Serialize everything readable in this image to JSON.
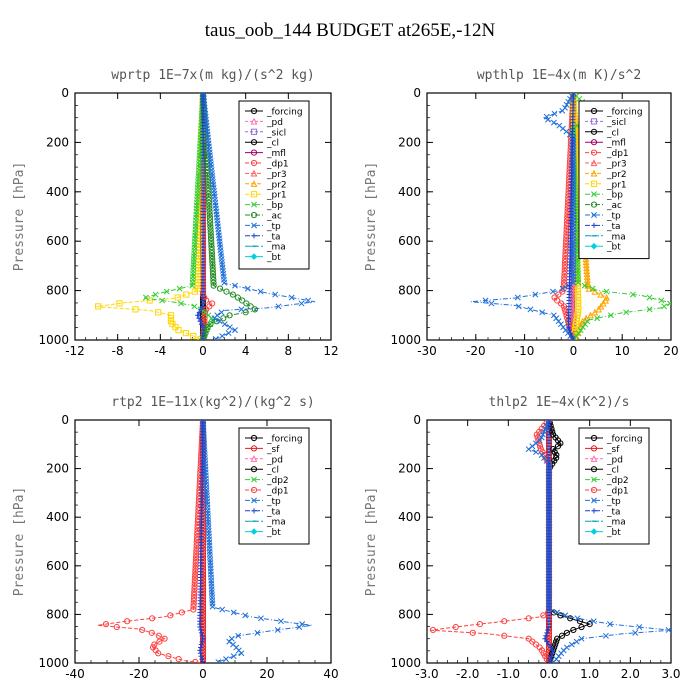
{
  "figure": {
    "title": "taus_oob_144  BUDGET at265E,-12N"
  },
  "colors": {
    "_forcing": "#000000",
    "_sf": "#e41a1c",
    "_pd": "#ff69b4",
    "_sicl": "#9370db",
    "_cl": "#000000",
    "_mfl": "#a0006a",
    "_dp1": "#ff4040",
    "_pr3": "#ff6060",
    "_pr2": "#ffa500",
    "_pr1": "#ffd700",
    "_bp": "#32cd32",
    "_ac": "#228b22",
    "_tp": "#1e6fd9",
    "_ta": "#1e3fc9",
    "_ma": "#00a0c0",
    "_bt": "#00d0e0",
    "_dp2": "#33cc33"
  },
  "chart_data": [
    {
      "type": "line",
      "title": "wprtp  1E−7x(m kg)/(s^2 kg)",
      "ylabel": "Pressure [hPa]",
      "xlabel": "",
      "xlim": [
        -12,
        12
      ],
      "ylim": [
        1000,
        0
      ],
      "xticks": [
        "-12",
        "-8",
        "-4",
        "0",
        "4",
        "8",
        "12"
      ],
      "yticks": [
        "0",
        "200",
        "400",
        "600",
        "800",
        "1000"
      ],
      "legend": [
        "_forcing",
        "_pd",
        "_sicl",
        "_cl",
        "_mfl",
        "_dp1",
        "_pr3",
        "_pr2",
        "_pr1",
        "_bp",
        "_ac",
        "_tp",
        "_ta",
        "_ma",
        "_bt"
      ],
      "legend_position": "top-right",
      "series": [
        {
          "name": "_forcing",
          "x": [
            0,
            0,
            0,
            0,
            0,
            0,
            0,
            0,
            0,
            0
          ],
          "y": [
            0,
            100,
            200,
            300,
            400,
            500,
            600,
            700,
            800,
            1000
          ]
        },
        {
          "name": "_dp1",
          "x": [
            0,
            0,
            0,
            0.3,
            0.9,
            0.7,
            0.2,
            0
          ],
          "y": [
            0,
            780,
            820,
            840,
            850,
            860,
            880,
            1000
          ]
        },
        {
          "name": "_pr1",
          "x": [
            0,
            -0.5,
            -2.5,
            -7.5,
            -10,
            -5,
            -3,
            -3,
            -2.3,
            0
          ],
          "y": [
            0,
            800,
            830,
            850,
            865,
            880,
            900,
            930,
            960,
            1000
          ]
        },
        {
          "name": "_bp",
          "x": [
            0,
            -1,
            -4,
            -5.5,
            -3,
            -1,
            0,
            1,
            0.2,
            0
          ],
          "y": [
            0,
            780,
            810,
            830,
            845,
            860,
            880,
            920,
            960,
            1000
          ]
        },
        {
          "name": "_ac",
          "x": [
            0,
            1,
            3,
            5,
            2.5,
            0.5,
            0
          ],
          "y": [
            0,
            780,
            820,
            880,
            900,
            940,
            1000
          ]
        },
        {
          "name": "_tp",
          "x": [
            0,
            2,
            6,
            10.5,
            6,
            2,
            1,
            3,
            1
          ],
          "y": [
            0,
            770,
            810,
            845,
            870,
            880,
            910,
            960,
            1000
          ]
        },
        {
          "name": "_ta",
          "x": [
            0,
            0,
            -0.5,
            0,
            0
          ],
          "y": [
            0,
            860,
            900,
            950,
            1000
          ]
        }
      ]
    },
    {
      "type": "line",
      "title": "wpthlp  1E−4x(m K)/s^2",
      "ylabel": "Pressure [hPa]",
      "xlabel": "",
      "xlim": [
        -30,
        20
      ],
      "ylim": [
        1000,
        0
      ],
      "xticks": [
        "-30",
        "-20",
        "-10",
        "0",
        "10",
        "20"
      ],
      "yticks": [
        "0",
        "200",
        "400",
        "600",
        "800",
        "1000"
      ],
      "legend": [
        "_forcing",
        "_sicl",
        "_cl",
        "_mfl",
        "_dp1",
        "_pr3",
        "_pr2",
        "_pr1",
        "_bp",
        "_ac",
        "_tp",
        "_ta",
        "_ma",
        "_bt"
      ],
      "legend_position": "top-right",
      "series": [
        {
          "name": "_forcing",
          "x": [
            0,
            0,
            0,
            0,
            0,
            0,
            0,
            0,
            0,
            0
          ],
          "y": [
            0,
            100,
            200,
            300,
            400,
            500,
            600,
            700,
            800,
            1000
          ]
        },
        {
          "name": "_pd",
          "x": [
            0,
            0,
            0,
            0
          ],
          "y": [
            0,
            400,
            800,
            1000
          ]
        },
        {
          "name": "_dp1",
          "x": [
            0,
            -2,
            -4,
            -2,
            0
          ],
          "y": [
            0,
            800,
            830,
            860,
            1000
          ]
        },
        {
          "name": "_pr2",
          "x": [
            0,
            3,
            7,
            5,
            2,
            0
          ],
          "y": [
            0,
            790,
            830,
            880,
            920,
            1000
          ]
        },
        {
          "name": "_pr1",
          "x": [
            0,
            1,
            0
          ],
          "y": [
            0,
            880,
            1000
          ]
        },
        {
          "name": "_bp",
          "x": [
            0,
            3,
            6,
            3,
            0,
            0,
            1,
            5,
            14,
            20,
            18,
            10,
            3,
            0
          ],
          "y": [
            0,
            60,
            90,
            110,
            140,
            200,
            770,
            800,
            820,
            850,
            870,
            890,
            920,
            1000
          ]
        },
        {
          "name": "_tp",
          "x": [
            0,
            -2,
            -6,
            -3,
            0,
            0,
            -3,
            -12,
            -21,
            -12,
            -4,
            0
          ],
          "y": [
            0,
            70,
            100,
            130,
            180,
            770,
            800,
            830,
            845,
            860,
            900,
            1000
          ]
        },
        {
          "name": "_ta",
          "x": [
            0,
            -1,
            0
          ],
          "y": [
            0,
            950,
            1000
          ]
        }
      ]
    },
    {
      "type": "line",
      "title": "rtp2  1E−11x(kg^2)/(kg^2 s)",
      "ylabel": "Pressure [hPa]",
      "xlabel": "",
      "xlim": [
        -40,
        40
      ],
      "ylim": [
        1000,
        0
      ],
      "xticks": [
        "-40",
        "-20",
        "0",
        "20",
        "40"
      ],
      "yticks": [
        "0",
        "200",
        "400",
        "600",
        "800",
        "1000"
      ],
      "legend": [
        "_forcing",
        "_sf",
        "_pd",
        "_cl",
        "_dp2",
        "_dp1",
        "_tp",
        "_ta",
        "_ma",
        "_bt"
      ],
      "legend_position": "top-right",
      "series": [
        {
          "name": "_sf",
          "x": [
            0,
            0,
            0,
            0,
            0,
            0,
            0,
            0,
            0,
            0
          ],
          "y": [
            0,
            100,
            200,
            300,
            400,
            500,
            600,
            700,
            800,
            1000
          ]
        },
        {
          "name": "_dp1",
          "x": [
            0,
            -3,
            -12,
            -25,
            -33,
            -20,
            -15,
            -12,
            -16,
            -14,
            -6,
            0
          ],
          "y": [
            0,
            780,
            810,
            830,
            845,
            860,
            880,
            900,
            930,
            960,
            990,
            1000
          ]
        },
        {
          "name": "_tp",
          "x": [
            0,
            3,
            15,
            28,
            34,
            20,
            10,
            8,
            10,
            12,
            6,
            4
          ],
          "y": [
            0,
            770,
            810,
            835,
            845,
            870,
            890,
            910,
            930,
            960,
            990,
            1000
          ]
        },
        {
          "name": "_ta",
          "x": [
            0,
            -1,
            0,
            -1,
            0
          ],
          "y": [
            0,
            850,
            900,
            950,
            1000
          ]
        }
      ]
    },
    {
      "type": "line",
      "title": "thlp2  1E−4x(K^2)/s",
      "ylabel": "Pressure [hPa]",
      "xlabel": "",
      "xlim": [
        -3,
        3
      ],
      "ylim": [
        1000,
        0
      ],
      "xticks": [
        "-3.0",
        "-2.0",
        "-1.0",
        "0.0",
        "1.0",
        "2.0",
        "3.0"
      ],
      "yticks": [
        "0",
        "200",
        "400",
        "600",
        "800",
        "1000"
      ],
      "legend": [
        "_forcing",
        "_sf",
        "_pd",
        "_cl",
        "_dp2",
        "_dp1",
        "_tp",
        "_ta",
        "_ma",
        "_bt"
      ],
      "legend_position": "top-right",
      "series": [
        {
          "name": "_sf",
          "x": [
            0,
            0,
            0,
            0,
            0,
            0,
            0,
            0,
            0,
            0
          ],
          "y": [
            0,
            100,
            200,
            300,
            400,
            500,
            600,
            700,
            800,
            1000
          ]
        },
        {
          "name": "_cl",
          "x": [
            0,
            0.1,
            0.3,
            0.1,
            0.2,
            0,
            0,
            0.2,
            0.6,
            1.0,
            0.5,
            0.2,
            0
          ],
          "y": [
            0,
            60,
            100,
            120,
            150,
            200,
            780,
            800,
            820,
            840,
            870,
            900,
            1000
          ]
        },
        {
          "name": "_dp1",
          "x": [
            0,
            -0.3,
            -0.2,
            0,
            0,
            -0.2,
            -1.2,
            -2.2,
            -2.9,
            -1.5,
            -0.5,
            -0.2,
            0
          ],
          "y": [
            0,
            60,
            120,
            180,
            790,
            810,
            830,
            850,
            865,
            880,
            900,
            940,
            1000
          ]
        },
        {
          "name": "_tp",
          "x": [
            0,
            -0.2,
            -0.5,
            -0.2,
            0,
            0,
            0.5,
            1.5,
            3.0,
            1.8,
            0.8,
            0.4,
            0.1
          ],
          "y": [
            0,
            80,
            120,
            140,
            180,
            780,
            810,
            840,
            865,
            880,
            900,
            940,
            1000
          ]
        },
        {
          "name": "_ta",
          "x": [
            0,
            0,
            -0.1,
            0.1,
            0
          ],
          "y": [
            0,
            850,
            900,
            950,
            1000
          ]
        }
      ]
    }
  ]
}
